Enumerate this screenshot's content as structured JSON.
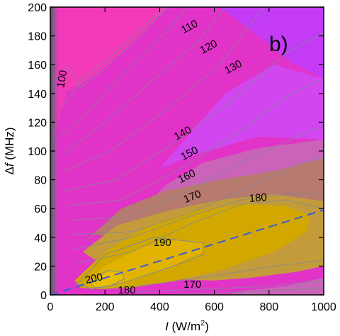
{
  "chart_data": {
    "type": "contour",
    "panel_label": "b)",
    "xlabel": {
      "var": "I",
      "unit": " (W/m",
      "sup": "2",
      "close": ")"
    },
    "ylabel": {
      "prefix": "Δ",
      "var": "f",
      "unit": " (MHz)"
    },
    "xlim": [
      0,
      1000
    ],
    "ylim": [
      0,
      200
    ],
    "xticks": [
      0,
      200,
      400,
      600,
      800,
      1000
    ],
    "yticks": [
      0,
      20,
      40,
      60,
      80,
      100,
      120,
      140,
      160,
      180,
      200
    ],
    "contour_labels": [
      {
        "text": "100",
        "x": 45,
        "y": 150,
        "angle": -80
      },
      {
        "text": "110",
        "x": 510,
        "y": 186,
        "angle": -28
      },
      {
        "text": "120",
        "x": 580,
        "y": 172,
        "angle": -28
      },
      {
        "text": "130",
        "x": 670,
        "y": 158,
        "angle": -28
      },
      {
        "text": "140",
        "x": 485,
        "y": 112,
        "angle": -28
      },
      {
        "text": "150",
        "x": 510,
        "y": 98,
        "angle": -28
      },
      {
        "text": "160",
        "x": 500,
        "y": 82,
        "angle": -26
      },
      {
        "text": "170",
        "x": 520,
        "y": 68,
        "angle": -22
      },
      {
        "text": "180",
        "x": 760,
        "y": 67,
        "angle": -4
      },
      {
        "text": "190",
        "x": 410,
        "y": 36,
        "angle": 0
      },
      {
        "text": "200",
        "x": 160,
        "y": 11,
        "angle": -12
      },
      {
        "text": "180",
        "x": 280,
        "y": 3,
        "angle": 0
      },
      {
        "text": "170",
        "x": 520,
        "y": 7,
        "angle": 0
      }
    ],
    "dashed_line": {
      "x": [
        0,
        1000
      ],
      "y": [
        0,
        59
      ],
      "color": "#3a5bd9"
    },
    "colors": {
      "background": "#e233c8",
      "upper_left": "#f23ab9",
      "top_right": "#c43bf5",
      "mid_purple": "#d246f0",
      "band_pink": "#c964b8",
      "band_brown": "#b67a6e",
      "band_ochre": "#c49b3b",
      "core_gold": "#d2a800",
      "core_inner": "#e1b300",
      "core_peak": "#e9bd00",
      "edge_gray": "#555555",
      "contour_line": "#7d8a99"
    }
  }
}
